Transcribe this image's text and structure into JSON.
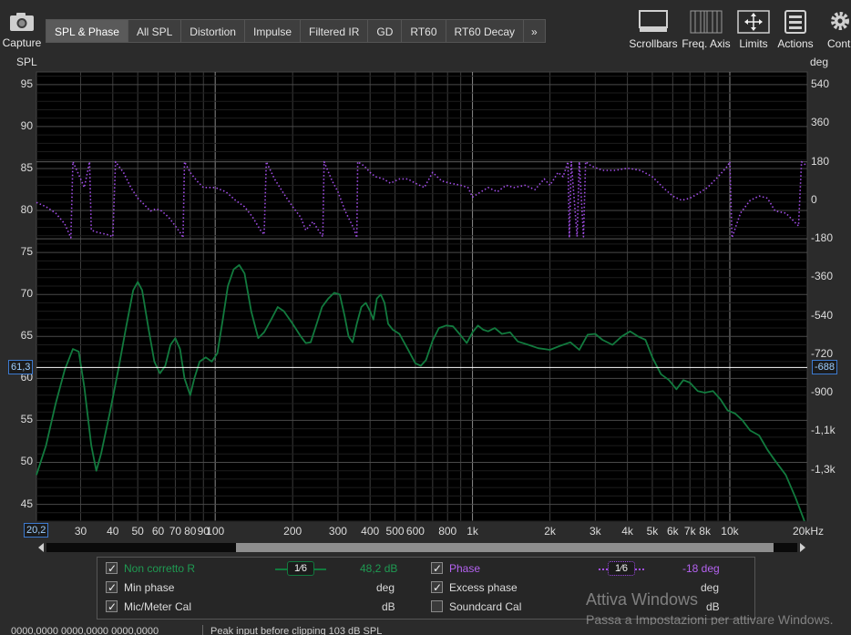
{
  "toolbar": {
    "capture_label": "Capture",
    "tabs": [
      "SPL & Phase",
      "All SPL",
      "Distortion",
      "Impulse",
      "Filtered IR",
      "GD",
      "RT60",
      "RT60 Decay"
    ],
    "more_glyph": "»",
    "tools": [
      {
        "label": "Scrollbars",
        "icon": "scrollbars-icon"
      },
      {
        "label": "Freq. Axis",
        "icon": "freq-axis-icon"
      },
      {
        "label": "Limits",
        "icon": "limits-icon"
      },
      {
        "label": "Actions",
        "icon": "actions-icon"
      },
      {
        "label": "Controls",
        "icon": "gear-icon"
      }
    ]
  },
  "colors": {
    "spl_trace": "#127a3e",
    "phase_trace": "#a24ee8",
    "plot_bg": "#000000",
    "grid": "#3a3a3a",
    "cursor": "#ffffff",
    "accent_label_spl": "#1f9a52",
    "accent_label_phase": "#b462f0"
  },
  "chart_data": {
    "type": "line",
    "xscale": "log",
    "xlim": [
      20.2,
      20000
    ],
    "ylim": [
      43,
      96.5
    ],
    "y2lim": [
      -1500,
      600
    ],
    "ylabel": "SPL",
    "y2label": "deg",
    "xlabel_unit": "kHz",
    "yticks": [
      45,
      50,
      55,
      60,
      65,
      70,
      75,
      80,
      85,
      90,
      95
    ],
    "y2ticks": [
      {
        "v": 540,
        "l": "540"
      },
      {
        "v": 360,
        "l": "360"
      },
      {
        "v": 180,
        "l": "180"
      },
      {
        "v": 0,
        "l": "0"
      },
      {
        "v": -180,
        "l": "-180"
      },
      {
        "v": -360,
        "l": "-360"
      },
      {
        "v": -540,
        "l": "-540"
      },
      {
        "v": -720,
        "l": "-720"
      },
      {
        "v": -900,
        "l": "-900"
      },
      {
        "v": -1080,
        "l": "-1,1k"
      },
      {
        "v": -1260,
        "l": "-1,3k"
      }
    ],
    "xticks": [
      {
        "v": 30,
        "l": "30"
      },
      {
        "v": 40,
        "l": "40"
      },
      {
        "v": 50,
        "l": "50"
      },
      {
        "v": 60,
        "l": "60"
      },
      {
        "v": 70,
        "l": "70"
      },
      {
        "v": 80,
        "l": "80"
      },
      {
        "v": 90,
        "l": "90"
      },
      {
        "v": 100,
        "l": "100"
      },
      {
        "v": 200,
        "l": "200"
      },
      {
        "v": 300,
        "l": "300"
      },
      {
        "v": 400,
        "l": "400"
      },
      {
        "v": 500,
        "l": "500"
      },
      {
        "v": 600,
        "l": "600"
      },
      {
        "v": 800,
        "l": "800"
      },
      {
        "v": 1000,
        "l": "1k"
      },
      {
        "v": 2000,
        "l": "2k"
      },
      {
        "v": 3000,
        "l": "3k"
      },
      {
        "v": 4000,
        "l": "4k"
      },
      {
        "v": 5000,
        "l": "5k"
      },
      {
        "v": 6000,
        "l": "6k"
      },
      {
        "v": 7000,
        "l": "7k"
      },
      {
        "v": 8000,
        "l": "8k"
      },
      {
        "v": 10000,
        "l": "10k"
      },
      {
        "v": 20000,
        "l": "20kHz"
      }
    ],
    "cursor": {
      "spl": "61,3",
      "deg": "-688",
      "freq": "20,2",
      "y": 61.3
    },
    "series": [
      {
        "name": "Non corretto R",
        "axis": "spl",
        "points": [
          [
            20.2,
            48.5
          ],
          [
            22,
            52
          ],
          [
            24,
            57
          ],
          [
            26,
            61
          ],
          [
            28,
            63.5
          ],
          [
            29.5,
            63.2
          ],
          [
            31,
            59
          ],
          [
            33,
            52
          ],
          [
            34.5,
            49
          ],
          [
            36,
            51
          ],
          [
            39,
            56
          ],
          [
            42,
            61
          ],
          [
            45,
            66
          ],
          [
            48,
            70.5
          ],
          [
            50,
            71.5
          ],
          [
            52,
            70.5
          ],
          [
            55,
            66
          ],
          [
            58,
            62
          ],
          [
            61,
            60.6
          ],
          [
            64,
            61.5
          ],
          [
            67,
            64
          ],
          [
            70,
            64.8
          ],
          [
            73,
            63.5
          ],
          [
            76,
            60
          ],
          [
            80,
            58
          ],
          [
            83,
            60
          ],
          [
            87,
            62
          ],
          [
            92,
            62.5
          ],
          [
            97,
            62
          ],
          [
            102,
            63
          ],
          [
            107,
            67
          ],
          [
            112,
            71
          ],
          [
            118,
            73
          ],
          [
            124,
            73.5
          ],
          [
            130,
            72.5
          ],
          [
            138,
            68
          ],
          [
            147,
            64.8
          ],
          [
            155,
            65.5
          ],
          [
            165,
            67
          ],
          [
            175,
            68.5
          ],
          [
            185,
            68
          ],
          [
            200,
            66.5
          ],
          [
            215,
            65
          ],
          [
            225,
            64.2
          ],
          [
            235,
            64.3
          ],
          [
            248,
            66.5
          ],
          [
            260,
            68.5
          ],
          [
            275,
            69.5
          ],
          [
            290,
            70.2
          ],
          [
            305,
            70
          ],
          [
            318,
            67.5
          ],
          [
            330,
            65
          ],
          [
            342,
            64.3
          ],
          [
            355,
            66.5
          ],
          [
            370,
            68.5
          ],
          [
            385,
            69
          ],
          [
            400,
            68
          ],
          [
            412,
            67
          ],
          [
            425,
            69.5
          ],
          [
            440,
            70
          ],
          [
            455,
            69
          ],
          [
            470,
            66.5
          ],
          [
            490,
            65.8
          ],
          [
            520,
            65.3
          ],
          [
            560,
            63.5
          ],
          [
            600,
            61.8
          ],
          [
            630,
            61.5
          ],
          [
            660,
            62.2
          ],
          [
            700,
            64.5
          ],
          [
            740,
            66
          ],
          [
            790,
            66.3
          ],
          [
            840,
            66.2
          ],
          [
            890,
            65.3
          ],
          [
            950,
            64.2
          ],
          [
            1000,
            65.5
          ],
          [
            1050,
            66.3
          ],
          [
            1100,
            65.8
          ],
          [
            1150,
            65.6
          ],
          [
            1220,
            66
          ],
          [
            1300,
            65.3
          ],
          [
            1400,
            65.5
          ],
          [
            1500,
            64.4
          ],
          [
            1650,
            64
          ],
          [
            1800,
            63.6
          ],
          [
            2000,
            63.4
          ],
          [
            2200,
            63.9
          ],
          [
            2400,
            64.3
          ],
          [
            2600,
            63.4
          ],
          [
            2800,
            65.2
          ],
          [
            3000,
            65.3
          ],
          [
            3200,
            64.6
          ],
          [
            3500,
            64
          ],
          [
            3800,
            65
          ],
          [
            4100,
            65.6
          ],
          [
            4400,
            65
          ],
          [
            4700,
            64.6
          ],
          [
            5000,
            62.5
          ],
          [
            5400,
            60.5
          ],
          [
            5800,
            59.8
          ],
          [
            6200,
            58.7
          ],
          [
            6600,
            59.8
          ],
          [
            7000,
            59.5
          ],
          [
            7500,
            58.5
          ],
          [
            8000,
            58.3
          ],
          [
            8600,
            58.5
          ],
          [
            9200,
            57.5
          ],
          [
            9800,
            56.2
          ],
          [
            10500,
            55.8
          ],
          [
            11200,
            55
          ],
          [
            12000,
            53.8
          ],
          [
            13000,
            53.2
          ],
          [
            14000,
            51.5
          ],
          [
            15000,
            50.2
          ],
          [
            16500,
            48.5
          ],
          [
            18000,
            45.8
          ],
          [
            19500,
            43
          ]
        ]
      },
      {
        "name": "Phase",
        "axis": "deg",
        "points": [
          [
            20.2,
            -10
          ],
          [
            22,
            -30
          ],
          [
            24,
            -60
          ],
          [
            26,
            -110
          ],
          [
            27.5,
            -175
          ],
          [
            28,
            180
          ],
          [
            28.5,
            160
          ],
          [
            30,
            100
          ],
          [
            31,
            60
          ],
          [
            32,
            140
          ],
          [
            32.5,
            180
          ],
          [
            33,
            -140
          ],
          [
            35,
            -150
          ],
          [
            38,
            -160
          ],
          [
            40,
            -170
          ],
          [
            41,
            180
          ],
          [
            44,
            130
          ],
          [
            47,
            60
          ],
          [
            50,
            10
          ],
          [
            53,
            -20
          ],
          [
            56,
            -50
          ],
          [
            59,
            -40
          ],
          [
            62,
            -50
          ],
          [
            66,
            -80
          ],
          [
            70,
            -120
          ],
          [
            74,
            -160
          ],
          [
            75,
            -175
          ],
          [
            76,
            180
          ],
          [
            80,
            130
          ],
          [
            85,
            90
          ],
          [
            90,
            60
          ],
          [
            100,
            60
          ],
          [
            110,
            40
          ],
          [
            120,
            0
          ],
          [
            130,
            -30
          ],
          [
            140,
            -80
          ],
          [
            150,
            -140
          ],
          [
            155,
            -160
          ],
          [
            158,
            180
          ],
          [
            170,
            100
          ],
          [
            185,
            30
          ],
          [
            200,
            -30
          ],
          [
            215,
            -80
          ],
          [
            225,
            -140
          ],
          [
            240,
            -100
          ],
          [
            255,
            -150
          ],
          [
            262,
            -170
          ],
          [
            265,
            180
          ],
          [
            285,
            90
          ],
          [
            300,
            40
          ],
          [
            320,
            -50
          ],
          [
            345,
            -130
          ],
          [
            355,
            -175
          ],
          [
            358,
            180
          ],
          [
            380,
            160
          ],
          [
            400,
            130
          ],
          [
            420,
            110
          ],
          [
            450,
            100
          ],
          [
            480,
            80
          ],
          [
            520,
            100
          ],
          [
            560,
            100
          ],
          [
            600,
            80
          ],
          [
            650,
            60
          ],
          [
            700,
            130
          ],
          [
            760,
            90
          ],
          [
            820,
            80
          ],
          [
            900,
            70
          ],
          [
            960,
            60
          ],
          [
            1000,
            15
          ],
          [
            1080,
            40
          ],
          [
            1150,
            60
          ],
          [
            1250,
            40
          ],
          [
            1350,
            70
          ],
          [
            1450,
            60
          ],
          [
            1600,
            70
          ],
          [
            1750,
            50
          ],
          [
            1900,
            100
          ],
          [
            2000,
            70
          ],
          [
            2150,
            130
          ],
          [
            2250,
            110
          ],
          [
            2350,
            180
          ],
          [
            2380,
            -175
          ],
          [
            2420,
            180
          ],
          [
            2550,
            -170
          ],
          [
            2600,
            180
          ],
          [
            2700,
            -170
          ],
          [
            2750,
            180
          ],
          [
            2900,
            160
          ],
          [
            3200,
            140
          ],
          [
            3600,
            140
          ],
          [
            4000,
            150
          ],
          [
            4500,
            140
          ],
          [
            5000,
            110
          ],
          [
            5500,
            60
          ],
          [
            6000,
            20
          ],
          [
            6500,
            0
          ],
          [
            7000,
            10
          ],
          [
            7500,
            30
          ],
          [
            8200,
            60
          ],
          [
            9000,
            110
          ],
          [
            9800,
            160
          ],
          [
            10000,
            180
          ],
          [
            10200,
            -175
          ],
          [
            11000,
            -60
          ],
          [
            12000,
            0
          ],
          [
            13000,
            20
          ],
          [
            14000,
            10
          ],
          [
            15000,
            -50
          ],
          [
            16500,
            -60
          ],
          [
            18500,
            -120
          ],
          [
            19000,
            180
          ],
          [
            20000,
            160
          ]
        ]
      }
    ]
  },
  "legend": {
    "spl": {
      "name": "Non corretto R",
      "smooth": "1⁄6",
      "value": "48,2 dB"
    },
    "phase": {
      "name": "Phase",
      "smooth": "1⁄6",
      "value": "-18 deg"
    },
    "min_phase": {
      "name": "Min phase",
      "unit": "deg"
    },
    "excess_phase": {
      "name": "Excess phase",
      "unit": "deg"
    },
    "mic_cal": {
      "name": "Mic/Meter Cal",
      "unit": "dB"
    },
    "soundcard_cal": {
      "name": "Soundcard Cal",
      "unit": "dB"
    }
  },
  "watermark": {
    "line1": "Attiva Windows",
    "line2": "Passa a Impostazioni per attivare Windows."
  },
  "status": {
    "left": "0000,0000  0000,0000  0000,0000",
    "right": "Peak input before clipping 103 dB SPL"
  }
}
